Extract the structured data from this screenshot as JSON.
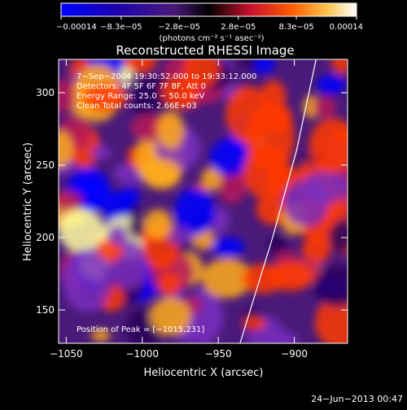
{
  "chart_data": {
    "type": "heatmap",
    "title": "Reconstructed RHESSI Image",
    "xlabel": "Heliocentric X (arcsec)",
    "ylabel": "Heliocentric Y (arcsec)",
    "xlim": [
      -1055,
      -865
    ],
    "ylim": [
      127,
      323
    ],
    "x_ticks": [
      {
        "value": -1050,
        "label": "−1050"
      },
      {
        "value": -1000,
        "label": "−1000"
      },
      {
        "value": -950,
        "label": "−950"
      },
      {
        "value": -900,
        "label": "−900"
      }
    ],
    "y_ticks": [
      {
        "value": 150,
        "label": "150"
      },
      {
        "value": 200,
        "label": "200"
      },
      {
        "value": 250,
        "label": "250"
      },
      {
        "value": 300,
        "label": "300"
      }
    ],
    "colorbar": {
      "min": -0.00014,
      "max": 0.00014,
      "ticks": [
        {
          "value": -0.00014,
          "label": "−0.00014"
        },
        {
          "value": -8.3e-05,
          "label": "−8.3e−05"
        },
        {
          "value": -2.8e-05,
          "label": "−2.8e−05"
        },
        {
          "value": 2.8e-05,
          "label": "2.8e−05"
        },
        {
          "value": 8.3e-05,
          "label": "8.3e−05"
        },
        {
          "value": 0.00014,
          "label": "0.00014"
        }
      ],
      "unit_label": "(photons cm⁻² s⁻¹ asec⁻²)"
    },
    "annotations": [
      "7−Sep−2004 19:30:52.000 to 19:33:12.000",
      "Detectors: 4F 5F 6F 7F 8F, Att 0",
      "Energy Range: 25.0 − 50.0 keV",
      "Clean     Total counts: 2.66E+03"
    ],
    "peak_label": "Position of Peak = [−1015,231]",
    "limb_curve": [
      [
        -935.7,
        127
      ],
      [
        -914.3,
        200
      ],
      [
        -898.6,
        260
      ],
      [
        -885.7,
        323
      ]
    ],
    "colormap": [
      "#0000ff",
      "#2a005a",
      "#7a2ec0",
      "#b5175b",
      "#ff3a00",
      "#ffad1a",
      "#ffffa0",
      "#ffffff"
    ],
    "grid": false,
    "legend": "none"
  },
  "footer": {
    "timestamp": "24−Jun−2013 00:47"
  }
}
